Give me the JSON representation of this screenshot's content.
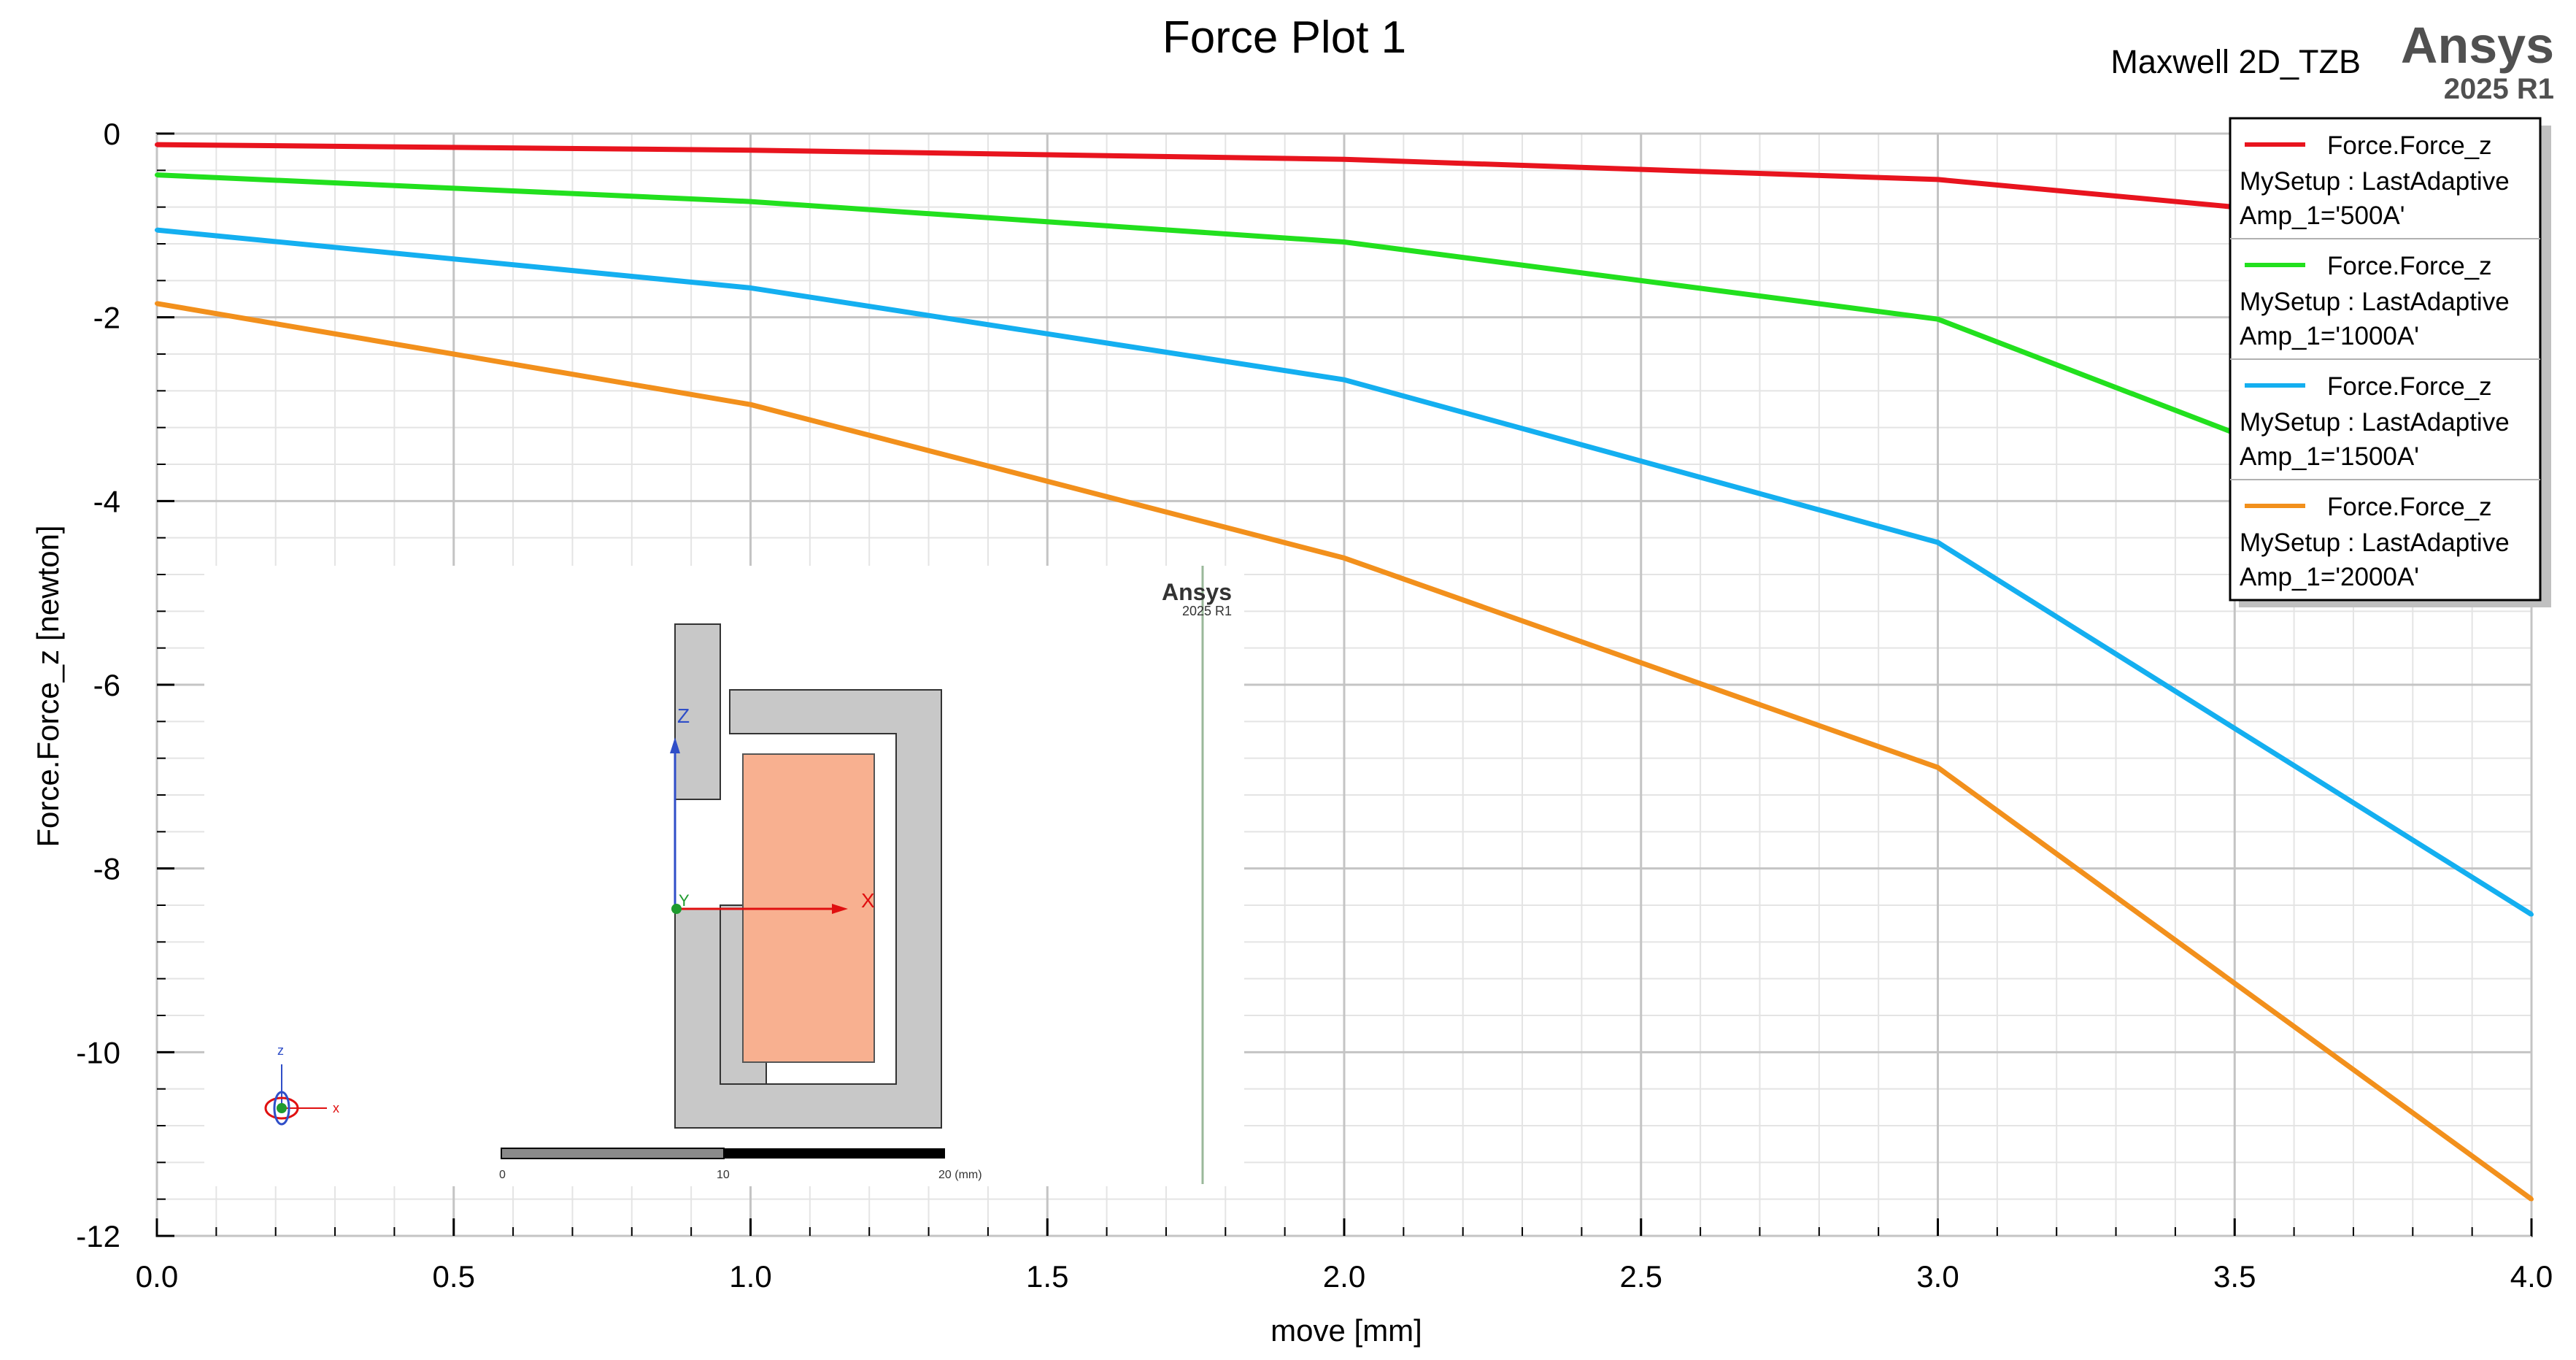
{
  "header": {
    "title": "Force Plot 1",
    "project": "Maxwell 2D_TZB",
    "brand": "Ansys",
    "brand_version": "2025 R1"
  },
  "chart_data": {
    "type": "line",
    "xlabel": "move [mm]",
    "ylabel": "Force.Force_z [newton]",
    "xlim": [
      0,
      4
    ],
    "ylim": [
      -12,
      0
    ],
    "x_ticks": [
      "0.0",
      "0.5",
      "1.0",
      "1.5",
      "2.0",
      "2.5",
      "3.0",
      "3.5",
      "4.0"
    ],
    "y_ticks": [
      "0",
      "-2",
      "-4",
      "-6",
      "-8",
      "-10",
      "-12"
    ],
    "grid": true,
    "legend_position": "top-right",
    "x": [
      0,
      1,
      2,
      3,
      4
    ],
    "series": [
      {
        "name": "Force.Force_z",
        "setup": "MySetup : LastAdaptive",
        "param": "Amp_1='500A'",
        "color": "#e8141e",
        "values": [
          -0.12,
          -0.18,
          -0.28,
          -0.5,
          -1.1
        ]
      },
      {
        "name": "Force.Force_z",
        "setup": "MySetup : LastAdaptive",
        "param": "Amp_1='1000A'",
        "color": "#22e01e",
        "values": [
          -0.45,
          -0.74,
          -1.18,
          -2.02,
          -4.5
        ]
      },
      {
        "name": "Force.Force_z",
        "setup": "MySetup : LastAdaptive",
        "param": "Amp_1='1500A'",
        "color": "#14aff0",
        "values": [
          -1.05,
          -1.68,
          -2.68,
          -4.45,
          -8.5
        ]
      },
      {
        "name": "Force.Force_z",
        "setup": "MySetup : LastAdaptive",
        "param": "Amp_1='2000A'",
        "color": "#f2901c",
        "values": [
          -1.85,
          -2.95,
          -4.62,
          -6.9,
          -11.6
        ]
      }
    ]
  },
  "inset": {
    "brand": "Ansys",
    "brand_version": "2025 R1",
    "axis_z": "Z",
    "axis_x": "X",
    "axis_y": "Y",
    "triad_z": "z",
    "triad_x": "x",
    "scale_ticks": [
      "0",
      "10",
      "20 (mm)"
    ]
  }
}
